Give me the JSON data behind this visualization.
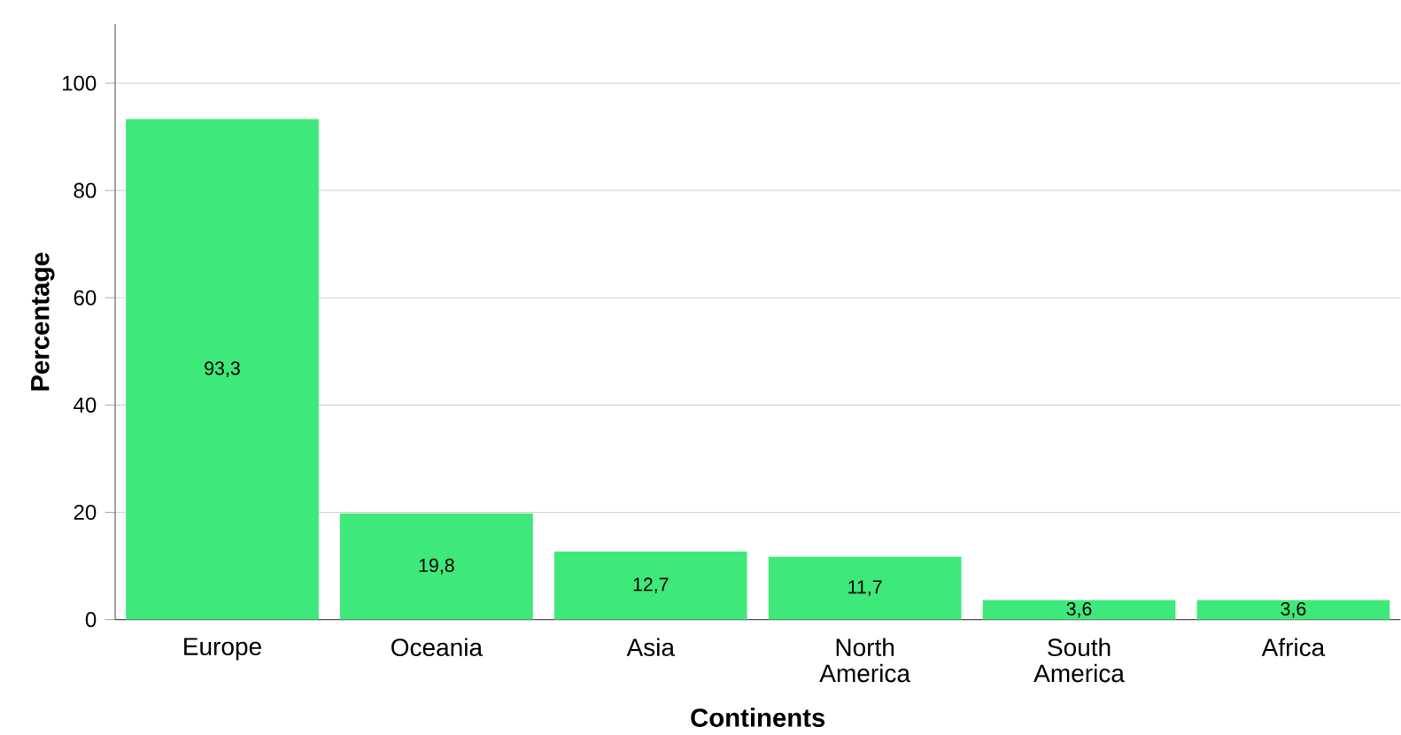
{
  "chart_data": {
    "type": "bar",
    "xlabel": "Continents",
    "ylabel": "Percentage",
    "categories": [
      "Europe",
      "Oceania",
      "Asia",
      "North America",
      "South America",
      "Africa"
    ],
    "values": [
      93.3,
      19.8,
      12.7,
      11.7,
      3.6,
      3.6
    ],
    "value_labels": [
      "93,3",
      "19,8",
      "12,7",
      "11,7",
      "3,6",
      "3,6"
    ],
    "color": "#3ee87a",
    "ylim": [
      0,
      111
    ],
    "yticks": [
      0,
      20,
      40,
      60,
      80,
      100
    ],
    "grid": "y"
  }
}
